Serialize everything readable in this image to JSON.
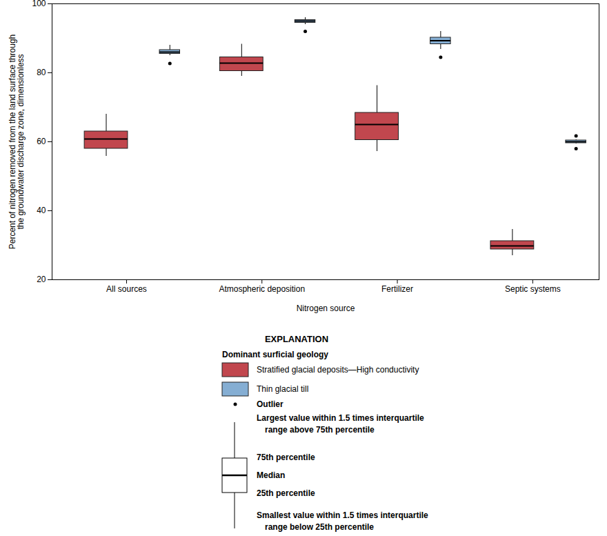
{
  "chart_data": {
    "type": "box",
    "x_label": "Nitrogen source",
    "y_label": "Percent of nitrogen removed from the land surface through\nthe groundwater discharge zone, dimensionless",
    "categories": [
      "All sources",
      "Atmospheric deposition",
      "Fertilizer",
      "Septic systems"
    ],
    "ylim": [
      20,
      100
    ],
    "yticks": [
      20,
      40,
      60,
      80,
      100
    ],
    "grid": false,
    "series": [
      {
        "name": "Stratified glacial deposits—High conductivity",
        "color": "#c1474e",
        "whisker_low": [
          55.8,
          79,
          57.2,
          27
        ],
        "q1": [
          58,
          80.5,
          60.5,
          28.8
        ],
        "median": [
          60.8,
          82.8,
          65,
          29.8
        ],
        "q3": [
          63,
          84.5,
          68.4,
          31.2
        ],
        "whisker_high": [
          68,
          88.3,
          76.3,
          34.6
        ],
        "outliers": [
          [],
          [],
          [],
          []
        ]
      },
      {
        "name": "Thin glacial till",
        "color": "#85aed3",
        "whisker_low": [
          85,
          94,
          86.8,
          59.4
        ],
        "q1": [
          85.5,
          94.5,
          88.3,
          59.6
        ],
        "median": [
          86,
          95,
          89.3,
          60
        ],
        "q3": [
          86.6,
          95.3,
          90.2,
          60.4
        ],
        "whisker_high": [
          88,
          96,
          92,
          60.6
        ],
        "outliers": [
          [
            82.7
          ],
          [
            92
          ],
          [
            84.5
          ],
          [
            61.7,
            58
          ]
        ]
      }
    ],
    "legend_title": "EXPLANATION",
    "legend_subtitle": "Dominant surficial geology",
    "outlier_label": "Outlier",
    "key_labels": {
      "whisker_high": [
        "Largest value within 1.5 times interquartile",
        "range above 75th percentile"
      ],
      "q3": [
        "75th percentile"
      ],
      "median": [
        "Median"
      ],
      "q1": [
        "25th percentile"
      ],
      "whisker_low": [
        "Smallest value within 1.5 times interquartile",
        "range below 25th percentile"
      ]
    }
  }
}
